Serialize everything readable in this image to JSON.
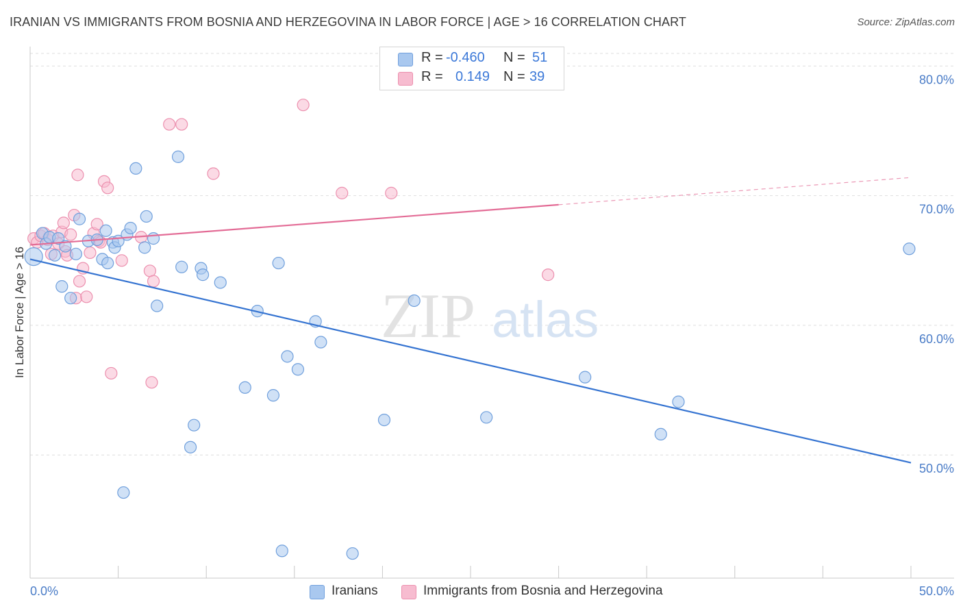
{
  "header": {
    "title": "IRANIAN VS IMMIGRANTS FROM BOSNIA AND HERZEGOVINA IN LABOR FORCE | AGE > 16 CORRELATION CHART",
    "source": "Source: ZipAtlas.com"
  },
  "legend": {
    "series1": {
      "r_label": "R =",
      "r_value": "-0.460",
      "n_label": "N =",
      "n_value": "51"
    },
    "series2": {
      "r_label": "R =",
      "r_value": "0.149",
      "n_label": "N =",
      "n_value": "39"
    }
  },
  "bottom_legend": {
    "series1": "Iranians",
    "series2": "Immigrants from Bosnia and Herzegovina"
  },
  "watermark": {
    "part1": "ZIP",
    "part2": "atlas"
  },
  "colors": {
    "series1_fill": "#a9c8ef",
    "series1_stroke": "#6f9fdc",
    "series1_line": "#3473d1",
    "series2_fill": "#f7bcd0",
    "series2_stroke": "#ec8fae",
    "series2_line": "#e36c96",
    "axis_text": "#4a7cc7",
    "grid": "#dedede"
  },
  "chart_data": {
    "type": "scatter",
    "title": "IRANIAN VS IMMIGRANTS FROM BOSNIA AND HERZEGOVINA IN LABOR FORCE | AGE > 16 CORRELATION CHART",
    "xlabel": "",
    "ylabel": "In Labor Force | Age > 16",
    "xlim": [
      0,
      50
    ],
    "ylim": [
      40.5,
      81.5
    ],
    "x_tick_labels": [
      "0.0%",
      "50.0%"
    ],
    "y_ticks": [
      50,
      60,
      70,
      80
    ],
    "y_tick_labels": [
      "50.0%",
      "60.0%",
      "70.0%",
      "80.0%"
    ],
    "grid": true,
    "series": [
      {
        "name": "Iranians",
        "points": [
          [
            0.2,
            65.3
          ],
          [
            0.7,
            67.1
          ],
          [
            0.9,
            66.3
          ],
          [
            1.1,
            66.8
          ],
          [
            1.4,
            65.4
          ],
          [
            1.6,
            66.7
          ],
          [
            1.8,
            63.0
          ],
          [
            2.0,
            66.1
          ],
          [
            2.3,
            62.1
          ],
          [
            2.6,
            65.5
          ],
          [
            2.8,
            68.2
          ],
          [
            3.3,
            66.5
          ],
          [
            3.8,
            66.6
          ],
          [
            4.1,
            65.1
          ],
          [
            4.3,
            67.3
          ],
          [
            4.4,
            64.8
          ],
          [
            4.7,
            66.4
          ],
          [
            4.8,
            66.0
          ],
          [
            5.0,
            66.5
          ],
          [
            5.3,
            47.1
          ],
          [
            5.5,
            67.0
          ],
          [
            5.7,
            67.5
          ],
          [
            6.0,
            72.1
          ],
          [
            6.5,
            66.0
          ],
          [
            6.6,
            68.4
          ],
          [
            7.0,
            66.7
          ],
          [
            7.2,
            61.5
          ],
          [
            8.4,
            73.0
          ],
          [
            8.6,
            64.5
          ],
          [
            9.1,
            50.6
          ],
          [
            9.3,
            52.3
          ],
          [
            9.7,
            64.4
          ],
          [
            9.8,
            63.9
          ],
          [
            10.8,
            63.3
          ],
          [
            12.2,
            55.2
          ],
          [
            12.9,
            61.1
          ],
          [
            13.8,
            54.6
          ],
          [
            14.1,
            64.8
          ],
          [
            14.3,
            42.6
          ],
          [
            14.6,
            57.6
          ],
          [
            15.2,
            56.6
          ],
          [
            16.2,
            60.3
          ],
          [
            16.5,
            58.7
          ],
          [
            18.3,
            42.4
          ],
          [
            20.1,
            52.7
          ],
          [
            21.8,
            61.9
          ],
          [
            25.9,
            52.9
          ],
          [
            31.5,
            56.0
          ],
          [
            35.8,
            51.6
          ],
          [
            36.8,
            54.1
          ],
          [
            49.9,
            65.9
          ]
        ],
        "trendline": {
          "x": [
            0,
            50
          ],
          "y": [
            65.1,
            49.4
          ]
        }
      },
      {
        "name": "Immigrants from Bosnia and Herzegovina",
        "points": [
          [
            0.2,
            66.7
          ],
          [
            0.4,
            66.4
          ],
          [
            0.6,
            66.9
          ],
          [
            0.8,
            67.1
          ],
          [
            1.0,
            66.6
          ],
          [
            1.2,
            65.5
          ],
          [
            1.3,
            66.9
          ],
          [
            1.6,
            66.3
          ],
          [
            1.8,
            67.2
          ],
          [
            1.9,
            67.9
          ],
          [
            2.0,
            65.7
          ],
          [
            2.1,
            65.4
          ],
          [
            2.3,
            67.0
          ],
          [
            2.5,
            68.5
          ],
          [
            2.6,
            62.1
          ],
          [
            2.7,
            71.6
          ],
          [
            2.8,
            63.4
          ],
          [
            3.0,
            64.4
          ],
          [
            3.2,
            62.2
          ],
          [
            3.4,
            65.6
          ],
          [
            3.6,
            67.1
          ],
          [
            3.8,
            67.8
          ],
          [
            3.9,
            66.5
          ],
          [
            4.0,
            66.4
          ],
          [
            4.2,
            71.1
          ],
          [
            4.4,
            70.6
          ],
          [
            4.6,
            56.3
          ],
          [
            5.2,
            65.0
          ],
          [
            6.3,
            66.8
          ],
          [
            6.8,
            64.2
          ],
          [
            6.9,
            55.6
          ],
          [
            7.0,
            63.4
          ],
          [
            7.9,
            75.5
          ],
          [
            8.6,
            75.5
          ],
          [
            10.4,
            71.7
          ],
          [
            15.5,
            77.0
          ],
          [
            17.7,
            70.2
          ],
          [
            20.5,
            70.2
          ],
          [
            29.4,
            63.9
          ]
        ],
        "trendline": {
          "x": [
            0,
            30
          ],
          "y": [
            66.2,
            69.3
          ],
          "dashed_extension": {
            "x": [
              30,
              50
            ],
            "y": [
              69.3,
              71.4
            ]
          }
        }
      }
    ]
  }
}
